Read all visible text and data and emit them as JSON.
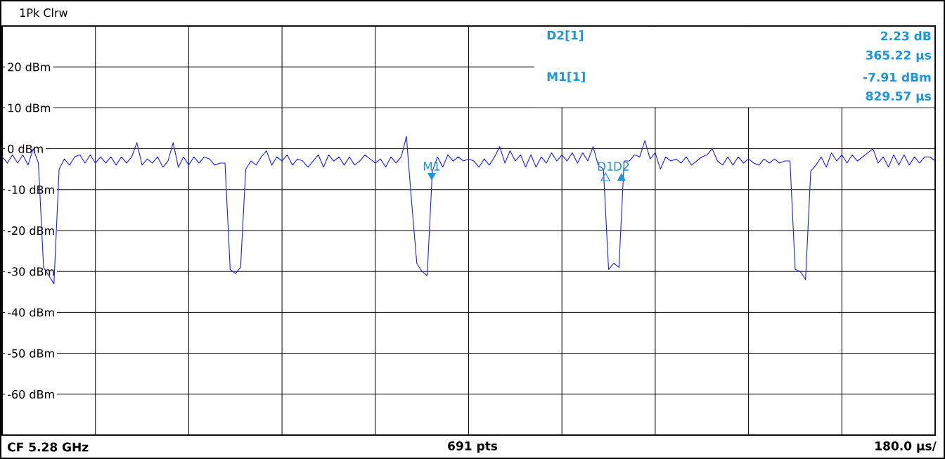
{
  "chart_data": {
    "type": "line",
    "title": "1Pk Clrw",
    "categories": [
      null,
      null,
      null,
      null,
      null,
      null,
      null,
      null,
      null,
      null,
      null,
      null,
      null,
      null,
      null,
      null,
      null,
      null,
      null,
      null,
      null,
      null,
      null,
      null,
      null,
      null,
      null,
      null,
      null,
      null,
      null,
      null,
      null,
      null,
      null,
      null,
      null,
      null,
      null,
      null,
      null,
      null,
      null,
      null,
      null,
      null,
      null,
      null,
      null,
      null,
      null,
      null,
      null,
      null,
      null,
      null,
      null,
      null,
      null,
      null,
      null,
      null,
      null,
      null,
      null,
      null,
      null,
      null,
      null,
      null,
      null,
      null,
      null,
      null,
      null,
      null,
      null,
      null,
      null,
      null,
      null,
      null,
      null,
      null,
      null,
      null,
      null,
      null,
      null,
      null,
      null,
      null,
      null,
      null,
      null,
      null,
      null,
      null,
      null,
      null,
      null,
      null,
      null,
      null,
      null,
      null,
      null,
      null,
      null,
      null,
      null,
      null,
      null,
      null,
      null,
      null,
      null,
      null,
      null,
      null,
      null,
      null,
      null,
      null,
      null,
      null,
      null,
      null,
      null,
      null,
      null,
      null,
      null,
      null,
      null,
      null,
      null,
      null,
      null,
      null,
      null,
      null,
      null,
      null,
      null,
      null,
      null,
      null,
      null,
      null,
      null,
      null,
      null,
      null,
      null,
      null,
      null,
      null,
      null,
      null,
      null,
      null,
      null,
      null,
      null,
      null,
      null,
      null,
      null,
      null,
      null,
      null,
      null,
      null,
      null,
      null,
      null,
      null,
      null,
      null,
      null
    ],
    "series": [
      {
        "color": "#1a1aff",
        "values": [
          -2,
          -3.5,
          -1.5,
          -3.5,
          -1.5,
          -4,
          0,
          -3.5,
          -29,
          -31,
          -33,
          -5,
          -2.5,
          -4,
          -2,
          -1.5,
          -3.5,
          -1.5,
          -3.5,
          -2,
          -3.5,
          -2,
          -4,
          -2,
          -3.5,
          -2,
          1.5,
          -4,
          -2.5,
          -3.5,
          -2,
          -4.5,
          -3,
          1.5,
          -4.5,
          -2,
          -4,
          -2,
          -3.5,
          -2,
          -2.5,
          -4,
          -3.5,
          -3.5,
          -29.5,
          -30.5,
          -29,
          -5,
          -3,
          -4,
          -2,
          -0.5,
          -4,
          -2,
          -3,
          -1.5,
          -4,
          -2.5,
          -3,
          -4.5,
          -3,
          -1.5,
          -4.5,
          -1.5,
          -3,
          -2,
          -4,
          -2,
          -4,
          -3,
          -1.5,
          -2.5,
          -3.5,
          -2.5,
          -4.5,
          -2,
          -3.5,
          -2,
          3,
          -13,
          -28,
          -30,
          -31,
          -5.5,
          -2,
          -4.5,
          -1.5,
          -3,
          -2,
          -3,
          -2.5,
          -3,
          -4.5,
          -2.5,
          -4,
          -2,
          0.5,
          -3.5,
          -0.5,
          -3,
          -1.5,
          -4.5,
          -1.5,
          -4.5,
          -2,
          -3.5,
          -1,
          -3,
          -1.5,
          -3,
          -1,
          -3.5,
          -1,
          -3,
          0.5,
          -4,
          -5,
          -29.5,
          -28,
          -29,
          -3,
          -3,
          -1.5,
          -2,
          2,
          -2.5,
          -1,
          -5,
          -2,
          -3,
          -2.5,
          -3.5,
          -2,
          -4,
          -3,
          -2,
          -1.5,
          0,
          -3,
          -4,
          -2,
          -4,
          -2,
          -3.5,
          -2.5,
          -3.5,
          -4,
          -2.5,
          -3.5,
          -2.5,
          -3.5,
          -3,
          -3,
          -29.5,
          -30,
          -32,
          -5.5,
          -4,
          -2,
          -4.5,
          -1,
          -3,
          -1.5,
          -3.5,
          -1.5,
          -3,
          -2,
          -1,
          0,
          -3.5,
          -2,
          -4.5,
          -1.5,
          -4,
          -1.5,
          -4,
          -2,
          -3.5,
          -2,
          -2,
          -3
        ]
      }
    ],
    "ylim": [
      -70,
      30
    ],
    "yticks": [
      {
        "value": 20,
        "label": "20 dBm"
      },
      {
        "value": 10,
        "label": "10 dBm"
      },
      {
        "value": 0,
        "label": "0 dBm"
      },
      {
        "value": -10,
        "label": "-10 dBm"
      },
      {
        "value": -20,
        "label": "-20 dBm"
      },
      {
        "value": -30,
        "label": "-30 dBm"
      },
      {
        "value": -40,
        "label": "-40 dBm"
      },
      {
        "value": -50,
        "label": "-50 dBm"
      },
      {
        "value": -60,
        "label": "-60 dBm"
      }
    ],
    "tick_labels": "y",
    "grid": true,
    "line_style": "solid",
    "annotations": [
      "D2[1]",
      "2.23 dB",
      "365.22 µs",
      "M1[1]",
      "-7.91 dBm",
      "829.57 µs",
      "CF 5.28 GHz",
      "691 pts",
      "180.0 µs/",
      "M1",
      "D1",
      "D2"
    ]
  }
}
